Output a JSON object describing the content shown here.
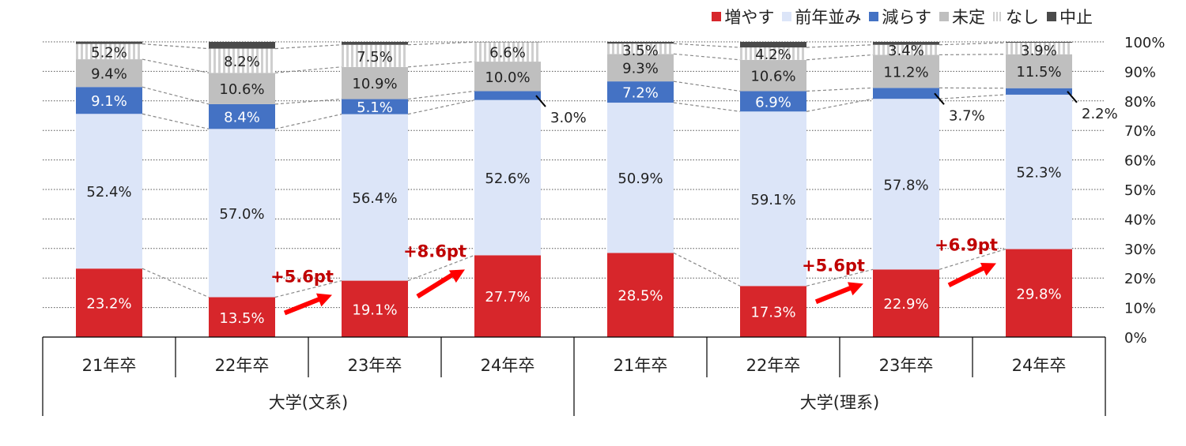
{
  "chart_data": {
    "type": "bar",
    "stacked": true,
    "colors": {
      "増やす": "#d7262b",
      "前年並み": "#dce5f8",
      "減らす": "#4472c4",
      "未定": "#bfbfbf",
      "なし": "#e6e6e6",
      "中止": "#4a4a4a"
    },
    "legend": [
      "増やす",
      "前年並み",
      "減らす",
      "未定",
      "なし",
      "中止"
    ],
    "ylim": [
      0,
      100
    ],
    "yticks": [
      "0%",
      "10%",
      "20%",
      "30%",
      "40%",
      "50%",
      "60%",
      "70%",
      "80%",
      "90%",
      "100%"
    ],
    "groups": [
      {
        "label": "大学(文系)",
        "categories": [
          "21年卒",
          "22年卒",
          "23年卒",
          "24年卒"
        ]
      },
      {
        "label": "大学(理系)",
        "categories": [
          "21年卒",
          "22年卒",
          "23年卒",
          "24年卒"
        ]
      }
    ],
    "series": [
      {
        "name": "増やす",
        "values": [
          23.2,
          13.5,
          19.1,
          27.7,
          28.5,
          17.3,
          22.9,
          29.8
        ],
        "labels": [
          "23.2%",
          "13.5%",
          "19.1%",
          "27.7%",
          "28.5%",
          "17.3%",
          "22.9%",
          "29.8%"
        ]
      },
      {
        "name": "前年並み",
        "values": [
          52.4,
          57.0,
          56.4,
          52.6,
          50.9,
          59.1,
          57.8,
          52.3
        ],
        "labels": [
          "52.4%",
          "57.0%",
          "56.4%",
          "52.6%",
          "50.9%",
          "59.1%",
          "57.8%",
          "52.3%"
        ]
      },
      {
        "name": "減らす",
        "values": [
          9.1,
          8.4,
          5.1,
          3.0,
          7.2,
          6.9,
          3.7,
          2.2
        ],
        "labels": [
          "9.1%",
          "8.4%",
          "5.1%",
          "3.0%",
          "7.2%",
          "6.9%",
          "3.7%",
          "2.2%"
        ]
      },
      {
        "name": "未定",
        "values": [
          9.4,
          10.6,
          10.9,
          10.0,
          9.3,
          10.6,
          11.2,
          11.5
        ],
        "labels": [
          "9.4%",
          "10.6%",
          "10.9%",
          "10.0%",
          "9.3%",
          "10.6%",
          "11.2%",
          "11.5%"
        ]
      },
      {
        "name": "なし",
        "values": [
          5.2,
          8.2,
          7.5,
          6.6,
          3.5,
          4.2,
          3.4,
          3.9
        ],
        "labels": [
          "5.2%",
          "8.2%",
          "7.5%",
          "6.6%",
          "3.5%",
          "4.2%",
          "3.4%",
          "3.9%"
        ]
      },
      {
        "name": "中止",
        "values": [
          0.8,
          2.3,
          1.0,
          0.1,
          0.6,
          1.9,
          1.0,
          0.3
        ]
      }
    ],
    "annotations": [
      {
        "text": "+5.6pt",
        "from": 1,
        "to": 2
      },
      {
        "text": "+8.6pt",
        "from": 2,
        "to": 3
      },
      {
        "text": "+5.6pt",
        "from": 5,
        "to": 6
      },
      {
        "text": "+6.9pt",
        "from": 6,
        "to": 7
      }
    ]
  }
}
